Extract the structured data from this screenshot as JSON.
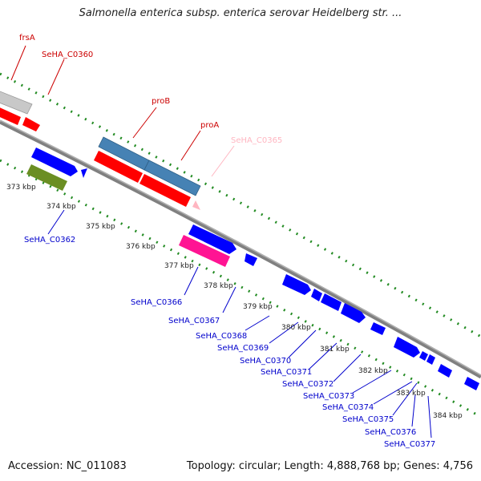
{
  "title": "Salmonella enterica subsp. enterica serovar Heidelberg str. ...",
  "footer": {
    "accession": "Accession: NC_011083",
    "summary": "Topology: circular; Length: 4,888,768 bp; Genes: 4,756"
  },
  "colors": {
    "forward_red": "#ff0000",
    "forward_blue": "#0000ff",
    "steel_blue": "#4682b4",
    "olive": "#6b8e23",
    "pink": "#ff1493",
    "light_pink": "#ffb6c1",
    "gray": "#c8c8c8",
    "backbone": "#808080",
    "tick_green": "#228b22"
  },
  "kbp_ticks": [
    "373 kbp",
    "374 kbp",
    "375 kbp",
    "376 kbp",
    "377 kbp",
    "378 kbp",
    "379 kbp",
    "380 kbp",
    "381 kbp",
    "382 kbp",
    "383 kbp",
    "384 kbp"
  ],
  "gene_labels": {
    "top": [
      {
        "name": "frsA",
        "color": "#cc0000"
      },
      {
        "name": "SeHA_C0360",
        "color": "#cc0000"
      },
      {
        "name": "proB",
        "color": "#cc0000"
      },
      {
        "name": "proA",
        "color": "#cc0000"
      },
      {
        "name": "SeHA_C0365",
        "color": "#ffb6c1"
      }
    ],
    "bottom": [
      {
        "name": "SeHA_C0362"
      },
      {
        "name": "SeHA_C0366"
      },
      {
        "name": "SeHA_C0367"
      },
      {
        "name": "SeHA_C0368"
      },
      {
        "name": "SeHA_C0369"
      },
      {
        "name": "SeHA_C0370"
      },
      {
        "name": "SeHA_C0371"
      },
      {
        "name": "SeHA_C0372"
      },
      {
        "name": "SeHA_C0373"
      },
      {
        "name": "SeHA_C0374"
      },
      {
        "name": "SeHA_C0375"
      },
      {
        "name": "SeHA_C0376"
      },
      {
        "name": "SeHA_C0377"
      }
    ]
  }
}
